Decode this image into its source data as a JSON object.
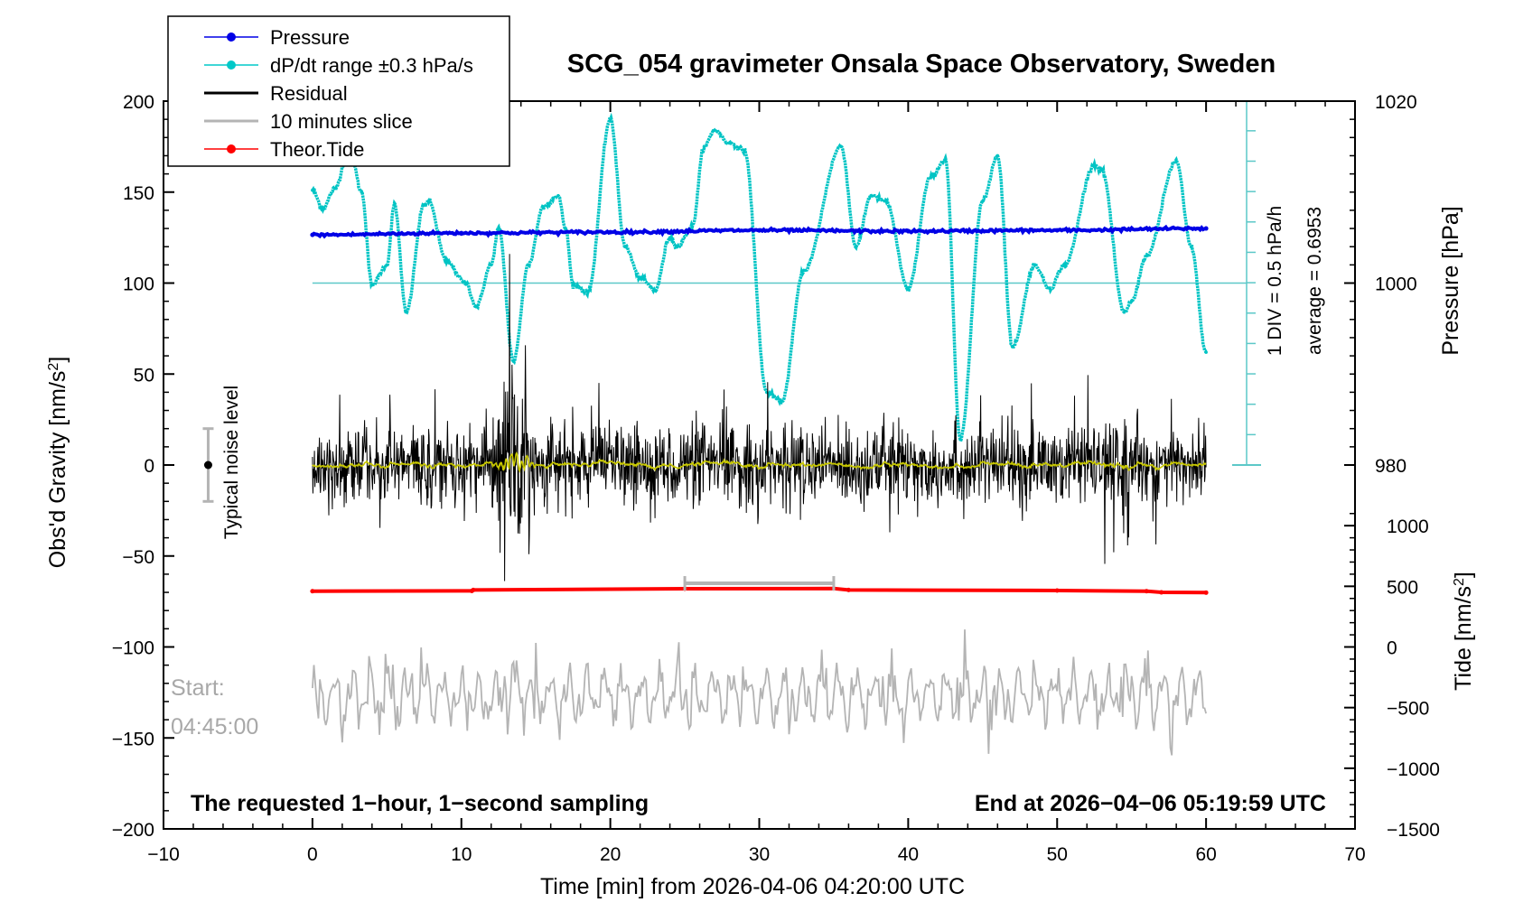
{
  "chart_data": {
    "type": "line",
    "title": "SCG_054 gravimeter Onsala Space Observatory, Sweden",
    "xlabel": "Time [min] from 2026-04-06 04:20:00 UTC",
    "ylabel_left": "Obs'd Gravity [nm/s",
    "ylabel_left_sup": "2",
    "ylabel_left_end": "]",
    "ylabel_right_pressure": "Pressure [hPa]",
    "ylabel_right_tide": "Tide [nm/s",
    "ylabel_right_tide_sup": "2",
    "ylabel_right_tide_end": "]",
    "xlim": [
      -10,
      70
    ],
    "ylim": [
      -200,
      200
    ],
    "x_ticks": [
      "−10",
      "0",
      "10",
      "20",
      "30",
      "40",
      "50",
      "60",
      "70"
    ],
    "y_ticks": [
      "200",
      "150",
      "100",
      "50",
      "0",
      "−50",
      "−100",
      "−150",
      "−200"
    ],
    "pressure_axis": {
      "ticks": [
        "1020",
        "1000",
        "980"
      ],
      "values": [
        1020,
        1000,
        980
      ]
    },
    "tide_axis": {
      "ticks": [
        "1000",
        "500",
        "0",
        "−500",
        "−1000",
        "−1500"
      ],
      "values": [
        1000,
        500,
        0,
        -500,
        -1000,
        -1500
      ]
    },
    "legend": [
      {
        "label": "Pressure",
        "color": "#0000e6",
        "marker": true
      },
      {
        "label": "dP/dt range ±0.3 hPa/s",
        "color": "#00c8c8",
        "marker": true
      },
      {
        "label": "Residual",
        "color": "#000000",
        "marker": false
      },
      {
        "label": "10 minutes slice",
        "color": "#b4b4b4",
        "marker": false
      },
      {
        "label": "Theor.Tide",
        "color": "#ff0000",
        "marker": true
      }
    ],
    "dpdt_scale_label": "1 DIV = 0.5 hPa/h",
    "average_label": "average = 0.6953",
    "noise_label": "Typical noise level",
    "start_label": "Start:",
    "start_time": "04:45:00",
    "footer_left": "The requested 1−hour, 1−second sampling",
    "footer_right": "End at 2026−04−06 05:19:59 UTC",
    "slice_range": [
      25,
      35
    ],
    "pressure_series": {
      "x": [
        0,
        10,
        20,
        30,
        40,
        50,
        60
      ],
      "values": [
        1005.3,
        1005.5,
        1005.6,
        1005.8,
        1005.7,
        1005.8,
        1006.0
      ]
    },
    "tide_series": {
      "x": [
        0,
        10.7,
        10.8,
        25,
        35,
        36,
        50,
        56,
        57,
        60
      ],
      "values": [
        460,
        462,
        470,
        480,
        482,
        470,
        465,
        460,
        450,
        448
      ]
    },
    "dpdt_series": {
      "x": [
        0,
        0.7,
        1.5,
        2.5,
        3.3,
        4,
        5,
        5.5,
        6.3,
        7.5,
        7.8,
        9,
        10.3,
        11,
        12,
        12.5,
        13.5,
        14.5,
        15.5,
        16.5,
        17,
        17.5,
        18.5,
        20,
        21,
        22,
        23,
        24,
        24.5,
        25.5,
        26.3,
        27,
        28,
        29,
        30.5,
        31.5,
        33,
        35.5,
        36.5,
        37.5,
        38.5,
        40,
        41.5,
        42.5,
        43.5,
        45,
        46,
        47,
        48.5,
        49.5,
        50.5,
        52.5,
        53,
        54.5,
        55,
        56,
        58,
        59,
        60
      ],
      "values": [
        151,
        141,
        152,
        175,
        150,
        99,
        110,
        143,
        84,
        143,
        145,
        112,
        100,
        87,
        110,
        130,
        57,
        110,
        142,
        148,
        130,
        99,
        95,
        190,
        120,
        103,
        96,
        125,
        120,
        131,
        175,
        184,
        177,
        173,
        40,
        35,
        107,
        175,
        120,
        148,
        145,
        97,
        158,
        168,
        14,
        145,
        170,
        65,
        110,
        97,
        110,
        165,
        162,
        84,
        90,
        115,
        167,
        120,
        62
      ]
    }
  }
}
